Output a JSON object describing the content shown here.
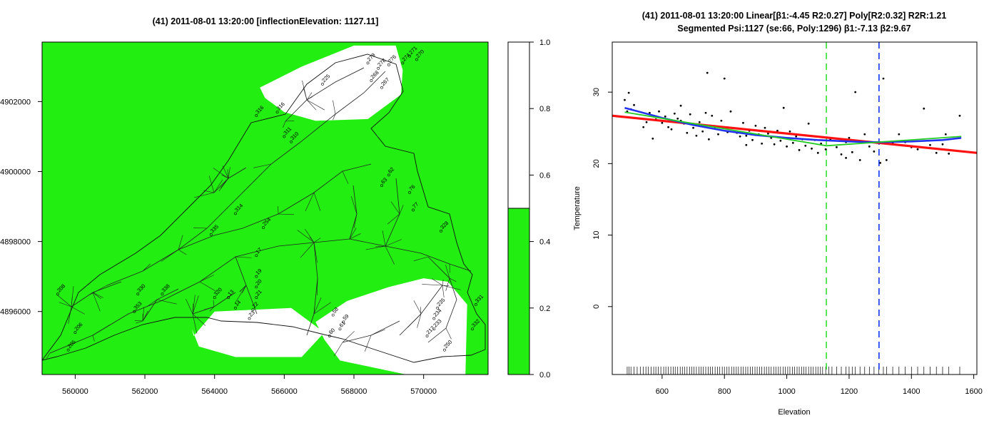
{
  "chart_data": [
    {
      "type": "heatmap",
      "title": "(41) 2011-08-01 13:20:00 [inflectionElevation: 1127.11]",
      "x_ticks": [
        "560000",
        "562000",
        "564000",
        "566000",
        "568000",
        "570000"
      ],
      "x_tick_values": [
        560000,
        562000,
        564000,
        566000,
        568000,
        570000
      ],
      "y_ticks": [
        "4896000",
        "4898000",
        "4900000",
        "4902000"
      ],
      "y_tick_values": [
        4896000,
        4898000,
        4900000,
        4902000
      ],
      "xlim": [
        559050,
        571850
      ],
      "ylim": [
        4894200,
        4903700
      ],
      "fill_color": "#22ee11",
      "white_regions": [
        {
          "x": [
            563400,
            564000,
            566200,
            567150,
            566500,
            564600,
            563550,
            563350,
            563400
          ],
          "y": [
            4895300,
            4896000,
            4896100,
            4895400,
            4894700,
            4894700,
            4895000,
            4895500,
            4895300
          ]
        },
        {
          "x": [
            566900,
            567800,
            569000,
            570000,
            570700,
            571250,
            571200,
            569500,
            567600,
            567150,
            566900
          ],
          "y": [
            4895700,
            4896300,
            4896700,
            4896950,
            4896850,
            4896200,
            4894200,
            4894200,
            4894600,
            4895200,
            4895700
          ]
        },
        {
          "x": [
            565300,
            566500,
            568000,
            569200,
            569400,
            569350,
            568400,
            566900,
            566000,
            565450,
            565300
          ],
          "y": [
            4902400,
            4903000,
            4903600,
            4903600,
            4902900,
            4902200,
            4901500,
            4901450,
            4901700,
            4902100,
            4902400
          ]
        }
      ],
      "colorbar": {
        "ticks": [
          "0.0",
          "0.2",
          "0.4",
          "0.6",
          "0.8",
          "1.0"
        ],
        "tick_values": [
          0,
          0.2,
          0.4,
          0.6,
          0.8,
          1.0
        ],
        "split": 0.5,
        "lower_color": "#22ee11",
        "upper_color": "#ffffff"
      },
      "site_labels": [
        {
          "text": "279",
          "x": 568400,
          "y": 4903100
        },
        {
          "text": "278",
          "x": 568700,
          "y": 4902950
        },
        {
          "text": "276",
          "x": 569000,
          "y": 4903050
        },
        {
          "text": "274",
          "x": 569400,
          "y": 4903100
        },
        {
          "text": "271",
          "x": 569600,
          "y": 4903300
        },
        {
          "text": "270",
          "x": 569800,
          "y": 4903200
        },
        {
          "text": "225",
          "x": 567100,
          "y": 4902500
        },
        {
          "text": "268",
          "x": 568500,
          "y": 4902600
        },
        {
          "text": "267",
          "x": 568800,
          "y": 4902400
        },
        {
          "text": "316",
          "x": 565200,
          "y": 4901600
        },
        {
          "text": "316",
          "x": 565800,
          "y": 4901700
        },
        {
          "text": "311",
          "x": 566000,
          "y": 4901000
        },
        {
          "text": "310",
          "x": 566200,
          "y": 4900850
        },
        {
          "text": "62",
          "x": 569000,
          "y": 4899900
        },
        {
          "text": "63",
          "x": 568800,
          "y": 4899600
        },
        {
          "text": "76",
          "x": 569600,
          "y": 4899400
        },
        {
          "text": "77",
          "x": 569700,
          "y": 4898900
        },
        {
          "text": "314",
          "x": 564600,
          "y": 4898800
        },
        {
          "text": "254",
          "x": 565400,
          "y": 4898400
        },
        {
          "text": "335",
          "x": 563900,
          "y": 4898200
        },
        {
          "text": "17",
          "x": 565200,
          "y": 4897600
        },
        {
          "text": "19",
          "x": 565200,
          "y": 4897000
        },
        {
          "text": "20",
          "x": 565200,
          "y": 4896700
        },
        {
          "text": "21",
          "x": 565200,
          "y": 4896400
        },
        {
          "text": "22",
          "x": 565100,
          "y": 4896050
        },
        {
          "text": "23",
          "x": 565000,
          "y": 4895800
        },
        {
          "text": "13",
          "x": 564400,
          "y": 4896400
        },
        {
          "text": "14",
          "x": 564600,
          "y": 4896100
        },
        {
          "text": "320",
          "x": 564000,
          "y": 4896400
        },
        {
          "text": "208",
          "x": 559500,
          "y": 4896500
        },
        {
          "text": "205",
          "x": 559800,
          "y": 4894900
        },
        {
          "text": "206",
          "x": 560000,
          "y": 4895400
        },
        {
          "text": "330",
          "x": 561800,
          "y": 4896500
        },
        {
          "text": "338",
          "x": 562500,
          "y": 4896500
        },
        {
          "text": "353",
          "x": 561700,
          "y": 4896000
        },
        {
          "text": "60",
          "x": 567300,
          "y": 4895300
        },
        {
          "text": "61",
          "x": 567600,
          "y": 4895500
        },
        {
          "text": "235",
          "x": 570400,
          "y": 4896100
        },
        {
          "text": "234",
          "x": 570300,
          "y": 4895800
        },
        {
          "text": "233",
          "x": 570300,
          "y": 4895500
        },
        {
          "text": "217",
          "x": 570100,
          "y": 4895300
        },
        {
          "text": "332",
          "x": 571400,
          "y": 4895500
        },
        {
          "text": "331",
          "x": 571500,
          "y": 4896200
        },
        {
          "text": "250",
          "x": 570600,
          "y": 4894900
        },
        {
          "text": "328",
          "x": 570500,
          "y": 4898300
        },
        {
          "text": "59",
          "x": 567700,
          "y": 4895700
        },
        {
          "text": "58",
          "x": 567400,
          "y": 4895900
        }
      ]
    },
    {
      "type": "scatter",
      "title": "(41) 2011-08-01 13:20:00 Linear[β1:-4.45 R2:0.27] Poly[R2:0.32] R2R:1.21",
      "subtitle": "Segmented Psi:1127 (se:66, Poly:1296) β1:-7.13 β2:9.67",
      "xlabel": "Elevation",
      "ylabel": "Temperature",
      "xlim": [
        440,
        1610
      ],
      "ylim": [
        -9.5,
        37
      ],
      "x_ticks": [
        600,
        800,
        1000,
        1200,
        1400,
        1600
      ],
      "y_ticks": [
        0,
        10,
        20,
        30
      ],
      "points": [
        [
          480,
          28.9
        ],
        [
          488,
          27.3
        ],
        [
          493,
          29.9
        ],
        [
          500,
          27.6
        ],
        [
          510,
          28.2
        ],
        [
          530,
          26.3
        ],
        [
          540,
          25.1
        ],
        [
          550,
          25.8
        ],
        [
          560,
          27.1
        ],
        [
          570,
          23.5
        ],
        [
          580,
          26.2
        ],
        [
          590,
          27.3
        ],
        [
          600,
          25.7
        ],
        [
          610,
          26.6
        ],
        [
          620,
          25.1
        ],
        [
          630,
          24.8
        ],
        [
          640,
          27.0
        ],
        [
          650,
          26.3
        ],
        [
          660,
          28.1
        ],
        [
          670,
          25.6
        ],
        [
          680,
          24.3
        ],
        [
          690,
          26.9
        ],
        [
          700,
          25.0
        ],
        [
          710,
          23.9
        ],
        [
          720,
          25.4
        ],
        [
          730,
          24.5
        ],
        [
          740,
          27.1
        ],
        [
          745,
          32.7
        ],
        [
          750,
          23.4
        ],
        [
          760,
          26.7
        ],
        [
          770,
          25.1
        ],
        [
          780,
          24.1
        ],
        [
          790,
          26.0
        ],
        [
          800,
          31.9
        ],
        [
          810,
          24.4
        ],
        [
          820,
          27.3
        ],
        [
          830,
          25.0
        ],
        [
          840,
          24.3
        ],
        [
          850,
          23.8
        ],
        [
          860,
          25.7
        ],
        [
          870,
          22.6
        ],
        [
          880,
          24.6
        ],
        [
          890,
          23.3
        ],
        [
          900,
          25.3
        ],
        [
          910,
          24.1
        ],
        [
          920,
          22.8
        ],
        [
          930,
          25.0
        ],
        [
          940,
          24.2
        ],
        [
          950,
          23.6
        ],
        [
          960,
          22.7
        ],
        [
          970,
          24.6
        ],
        [
          980,
          23.2
        ],
        [
          990,
          27.8
        ],
        [
          1000,
          22.4
        ],
        [
          1010,
          24.5
        ],
        [
          1020,
          22.9
        ],
        [
          1030,
          23.8
        ],
        [
          1040,
          21.9
        ],
        [
          1050,
          23.4
        ],
        [
          1060,
          22.5
        ],
        [
          1070,
          25.6
        ],
        [
          1080,
          22.1
        ],
        [
          1090,
          23.3
        ],
        [
          1100,
          21.5
        ],
        [
          1110,
          22.8
        ],
        [
          1125,
          22.0
        ],
        [
          1140,
          23.4
        ],
        [
          1160,
          22.3
        ],
        [
          1175,
          21.3
        ],
        [
          1190,
          20.8
        ],
        [
          1200,
          23.6
        ],
        [
          1210,
          21.6
        ],
        [
          1220,
          30.0
        ],
        [
          1235,
          20.5
        ],
        [
          1250,
          24.1
        ],
        [
          1265,
          22.4
        ],
        [
          1280,
          21.7
        ],
        [
          1300,
          20.1
        ],
        [
          1310,
          31.9
        ],
        [
          1320,
          20.5
        ],
        [
          1340,
          22.9
        ],
        [
          1360,
          24.1
        ],
        [
          1380,
          23.0
        ],
        [
          1400,
          22.3
        ],
        [
          1420,
          22.0
        ],
        [
          1440,
          27.7
        ],
        [
          1460,
          22.6
        ],
        [
          1480,
          21.5
        ],
        [
          1500,
          22.7
        ],
        [
          1520,
          21.4
        ],
        [
          1555,
          26.7
        ],
        [
          1510,
          24.1
        ],
        [
          1190,
          23.0
        ],
        [
          870,
          23.9
        ],
        [
          660,
          26.0
        ],
        [
          720,
          25.8
        ],
        [
          900,
          24.0
        ]
      ],
      "series": [
        {
          "name": "",
          "color": "#ff1111",
          "width": 3.2,
          "x": [
            440,
            1610
          ],
          "y": [
            26.7,
            21.5
          ]
        },
        {
          "name": "",
          "color": "#2233ee",
          "width": 2.6,
          "x": [
            480,
            600,
            700,
            800,
            900,
            1000,
            1100,
            1200,
            1260,
            1300,
            1400,
            1500,
            1560
          ],
          "y": [
            27.8,
            26.4,
            25.4,
            24.6,
            24.0,
            23.6,
            23.3,
            23.1,
            23.0,
            23.0,
            23.1,
            23.3,
            23.6
          ]
        },
        {
          "name": "",
          "color": "#22cc22",
          "width": 1.8,
          "x": [
            480,
            1127,
            1560
          ],
          "y": [
            27.2,
            22.5,
            23.8
          ]
        }
      ],
      "vlines": [
        {
          "x": 1127,
          "color": "#33dd33"
        },
        {
          "x": 1296,
          "color": "#1133ee"
        }
      ],
      "rug": [
        488,
        494,
        500,
        510,
        520,
        530,
        540,
        548,
        556,
        565,
        573,
        580,
        588,
        596,
        605,
        612,
        620,
        628,
        636,
        642,
        650,
        658,
        665,
        672,
        680,
        688,
        695,
        702,
        710,
        718,
        725,
        732,
        740,
        748,
        755,
        762,
        770,
        778,
        785,
        793,
        800,
        808,
        815,
        823,
        830,
        838,
        845,
        853,
        860,
        868,
        875,
        883,
        890,
        898,
        905,
        913,
        920,
        928,
        935,
        943,
        950,
        958,
        965,
        973,
        980,
        988,
        995,
        1003,
        1010,
        1018,
        1025,
        1033,
        1040,
        1048,
        1055,
        1062,
        1070,
        1078,
        1085,
        1093,
        1100,
        1108,
        1115,
        1125,
        1135,
        1145,
        1160,
        1175,
        1190,
        1200,
        1210,
        1220,
        1235,
        1250,
        1265,
        1280,
        1295,
        1310,
        1320,
        1340,
        1360,
        1380,
        1400,
        1420,
        1440,
        1460,
        1480,
        1500,
        1520,
        1555
      ]
    }
  ]
}
